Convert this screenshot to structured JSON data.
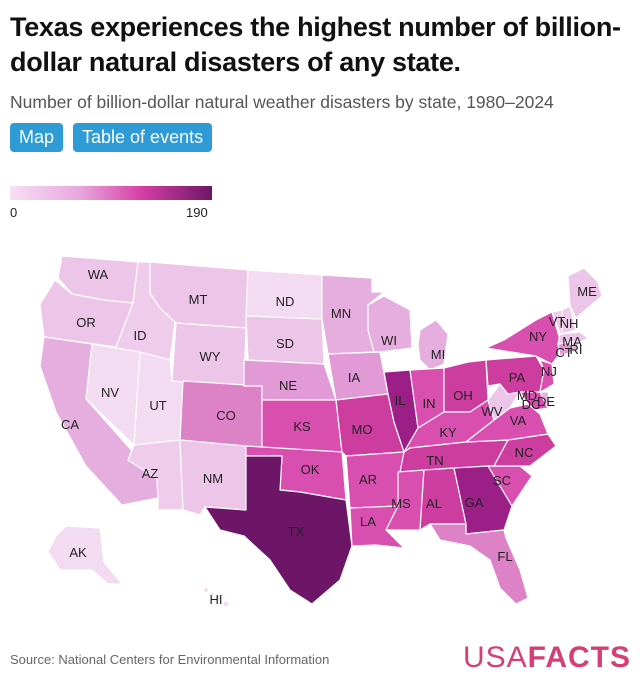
{
  "title": "Texas experiences the highest number of billion-dollar natural disasters of any state.",
  "subtitle": "Number of billion-dollar natural weather disasters by state, 1980–2024",
  "tabs": [
    {
      "label": "Map",
      "active": true
    },
    {
      "label": "Table of events",
      "active": false
    }
  ],
  "legend": {
    "min": "0",
    "max": "190",
    "colors": [
      "#f7e0f4",
      "#e8a6dd",
      "#d63fa6",
      "#6d1566"
    ]
  },
  "states": {
    "WA": "WA",
    "OR": "OR",
    "CA": "CA",
    "ID": "ID",
    "NV": "NV",
    "AZ": "AZ",
    "UT": "UT",
    "MT": "MT",
    "WY": "WY",
    "CO": "CO",
    "NM": "NM",
    "ND": "ND",
    "SD": "SD",
    "NE": "NE",
    "KS": "KS",
    "OK": "OK",
    "TX": "TX",
    "MN": "MN",
    "IA": "IA",
    "MO": "MO",
    "AR": "AR",
    "LA": "LA",
    "WI": "WI",
    "IL": "IL",
    "MI": "MI",
    "IN": "IN",
    "OH": "OH",
    "KY": "KY",
    "TN": "TN",
    "MS": "MS",
    "AL": "AL",
    "GA": "GA",
    "FL": "FL",
    "SC": "SC",
    "NC": "NC",
    "VA": "VA",
    "WV": "WV",
    "PA": "PA",
    "NY": "NY",
    "MD": "MD",
    "DE": "DE",
    "DC": "DC",
    "NJ": "NJ",
    "CT": "CT",
    "RI": "RI",
    "MA": "MA",
    "VT": "VT",
    "NH": "NH",
    "ME": "ME",
    "AK": "AK",
    "HI": "HI"
  },
  "source": "Source: National Centers for Environmental Information",
  "brand": {
    "usa": "USA",
    "facts": "FACTS"
  }
}
